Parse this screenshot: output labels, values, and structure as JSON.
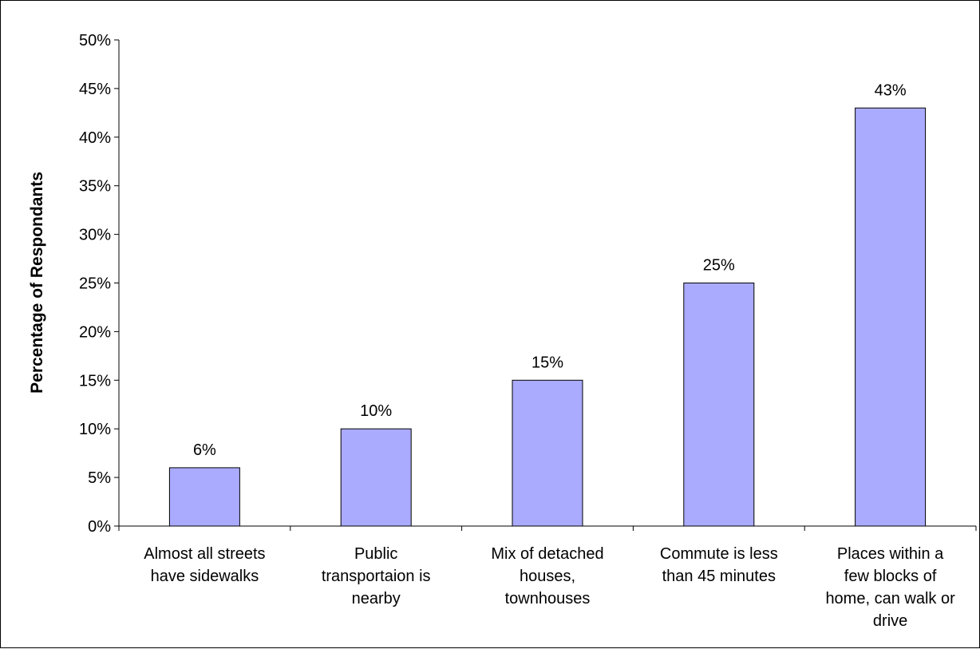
{
  "chart_data": {
    "type": "bar",
    "title": "",
    "xlabel": "",
    "ylabel": "Percentage of Respondants",
    "ylim": [
      0,
      50
    ],
    "y_tick_step": 5,
    "y_tick_labels": [
      "0%",
      "5%",
      "10%",
      "15%",
      "20%",
      "25%",
      "30%",
      "35%",
      "40%",
      "45%",
      "50%"
    ],
    "categories": [
      [
        "Almost all streets",
        "have sidewalks"
      ],
      [
        "Public",
        "transportaion is",
        "nearby"
      ],
      [
        "Mix of detached",
        "houses,",
        "townhouses"
      ],
      [
        "Commute is less",
        "than 45 minutes"
      ],
      [
        "Places within a",
        "few blocks of",
        "home, can walk or",
        "drive"
      ]
    ],
    "values": [
      6,
      10,
      15,
      25,
      43
    ],
    "data_labels": [
      "6%",
      "10%",
      "15%",
      "25%",
      "43%"
    ],
    "grid": false,
    "legend": "none",
    "bar_color": "#aaaaff",
    "bar_stroke": "#000000"
  }
}
